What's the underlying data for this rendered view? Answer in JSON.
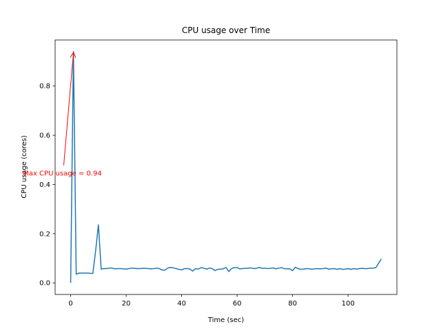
{
  "chart_data": {
    "type": "line",
    "title": "CPU usage over Time",
    "xlabel": "Time (sec)",
    "ylabel": "CPU usage (cores)",
    "xlim": [
      -5.6,
      117.6
    ],
    "ylim": [
      -0.047,
      0.987
    ],
    "xticks": [
      0,
      20,
      40,
      60,
      80,
      100
    ],
    "xtick_labels": [
      "0",
      "20",
      "40",
      "60",
      "80",
      "100"
    ],
    "yticks": [
      0.0,
      0.2,
      0.4,
      0.6,
      0.8
    ],
    "ytick_labels": [
      "0.0",
      "0.2",
      "0.4",
      "0.6",
      "0.8"
    ],
    "grid": false,
    "series": [
      {
        "color": "#1f77b4",
        "x": [
          0,
          1,
          2,
          3,
          4,
          5,
          6,
          7,
          8,
          9,
          10,
          11,
          12,
          13,
          14,
          15,
          16,
          17,
          18,
          19,
          20,
          21,
          22,
          23,
          24,
          25,
          26,
          27,
          28,
          29,
          30,
          31,
          32,
          33,
          34,
          35,
          36,
          37,
          38,
          39,
          40,
          41,
          42,
          43,
          44,
          45,
          46,
          47,
          48,
          49,
          50,
          51,
          52,
          53,
          54,
          55,
          56,
          57,
          58,
          59,
          60,
          61,
          62,
          63,
          64,
          65,
          66,
          67,
          68,
          69,
          70,
          71,
          72,
          73,
          74,
          75,
          76,
          77,
          78,
          79,
          80,
          81,
          82,
          83,
          84,
          85,
          86,
          87,
          88,
          89,
          90,
          91,
          92,
          93,
          94,
          95,
          96,
          97,
          98,
          99,
          100,
          101,
          102,
          103,
          104,
          105,
          106,
          107,
          108,
          109,
          110,
          111,
          112
        ],
        "values": [
          0.0,
          0.94,
          0.035,
          0.04,
          0.04,
          0.04,
          0.04,
          0.039,
          0.038,
          0.13,
          0.236,
          0.056,
          0.058,
          0.058,
          0.06,
          0.06,
          0.057,
          0.058,
          0.058,
          0.057,
          0.056,
          0.058,
          0.06,
          0.059,
          0.058,
          0.058,
          0.059,
          0.059,
          0.058,
          0.057,
          0.058,
          0.06,
          0.058,
          0.052,
          0.052,
          0.06,
          0.063,
          0.061,
          0.058,
          0.055,
          0.053,
          0.058,
          0.058,
          0.056,
          0.048,
          0.058,
          0.056,
          0.062,
          0.06,
          0.056,
          0.06,
          0.058,
          0.05,
          0.055,
          0.056,
          0.057,
          0.063,
          0.046,
          0.058,
          0.062,
          0.062,
          0.057,
          0.058,
          0.059,
          0.06,
          0.061,
          0.058,
          0.059,
          0.063,
          0.059,
          0.06,
          0.058,
          0.059,
          0.061,
          0.057,
          0.06,
          0.062,
          0.058,
          0.057,
          0.057,
          0.05,
          0.063,
          0.058,
          0.055,
          0.056,
          0.058,
          0.057,
          0.056,
          0.057,
          0.058,
          0.057,
          0.058,
          0.06,
          0.056,
          0.057,
          0.058,
          0.055,
          0.058,
          0.055,
          0.056,
          0.058,
          0.055,
          0.058,
          0.056,
          0.058,
          0.059,
          0.058,
          0.058,
          0.06,
          0.06,
          0.062,
          0.08,
          0.097
        ]
      }
    ],
    "annotation": {
      "text": "Max CPU usage = 0.94",
      "color": "#ff0000",
      "point": [
        1,
        0.94
      ],
      "text_position": [
        -2.5,
        0.478
      ]
    }
  }
}
